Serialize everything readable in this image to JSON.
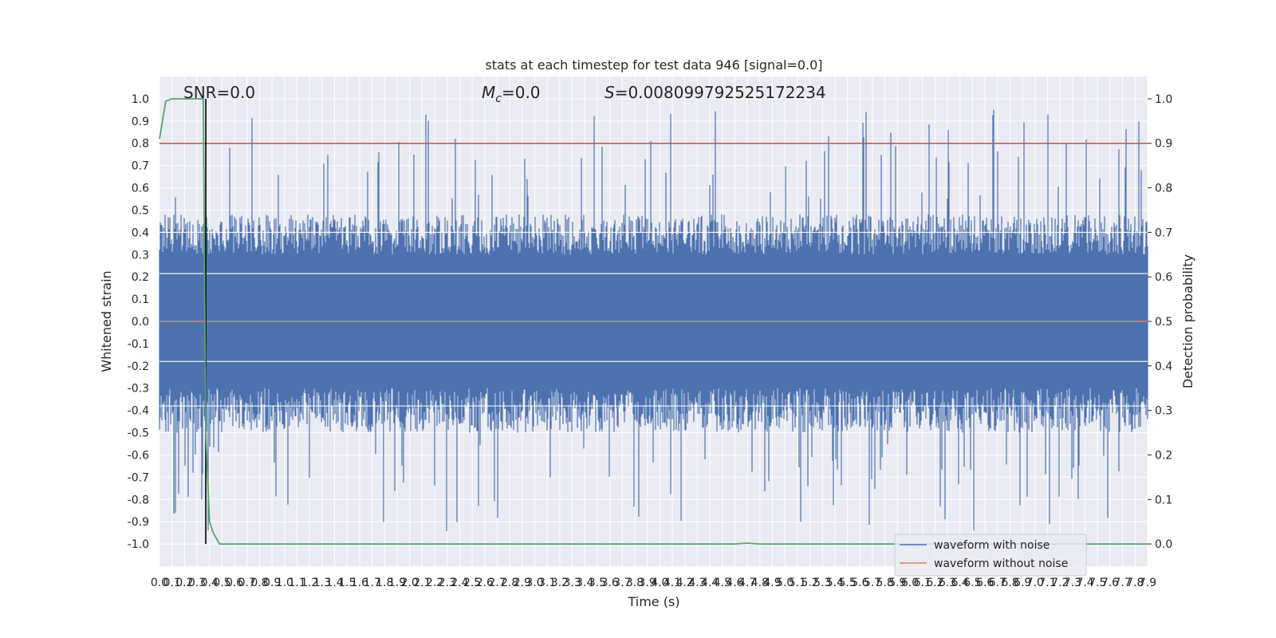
{
  "chart_data": {
    "type": "line",
    "title": "stats at each timestep for test data 946 [signal=0.0]",
    "xlabel": "Time (s)",
    "ylabel_left": "Whitened strain",
    "ylabel_right": "Detection probability",
    "xlim": [
      0.0,
      7.9
    ],
    "ylim_left": [
      -1.1,
      1.1
    ],
    "ylim_right": [
      -0.05,
      1.05
    ],
    "x_ticks": [
      "0.0",
      "0.1",
      "0.2",
      "0.3",
      "0.4",
      "0.5",
      "0.6",
      "0.7",
      "0.8",
      "0.9",
      "1.0",
      "1.1",
      "1.2",
      "1.3",
      "1.4",
      "1.5",
      "1.6",
      "1.7",
      "1.8",
      "1.9",
      "2.0",
      "2.1",
      "2.2",
      "2.3",
      "2.4",
      "2.5",
      "2.6",
      "2.7",
      "2.8",
      "2.9",
      "3.0",
      "3.1",
      "3.2",
      "3.3",
      "3.4",
      "3.5",
      "3.6",
      "3.7",
      "3.8",
      "3.9",
      "4.0",
      "4.1",
      "4.2",
      "4.3",
      "4.4",
      "4.5",
      "4.6",
      "4.7",
      "4.8",
      "4.9",
      "5.0",
      "5.1",
      "5.2",
      "5.3",
      "5.4",
      "5.5",
      "5.6",
      "5.7",
      "5.8",
      "5.9",
      "6.0",
      "6.1",
      "6.2",
      "6.3",
      "6.4",
      "6.5",
      "6.6",
      "6.7",
      "6.8",
      "6.9",
      "7.0",
      "7.1",
      "7.2",
      "7.3",
      "7.4",
      "7.5",
      "7.6",
      "7.7",
      "7.8",
      "7.9"
    ],
    "y_ticks_left": [
      "-1.0",
      "-0.9",
      "-0.8",
      "-0.7",
      "-0.6",
      "-0.5",
      "-0.4",
      "-0.3",
      "-0.2",
      "-0.1",
      "0.0",
      "0.1",
      "0.2",
      "0.3",
      "0.4",
      "0.5",
      "0.6",
      "0.7",
      "0.8",
      "0.9",
      "1.0"
    ],
    "y_ticks_right": [
      "0.0",
      "0.1",
      "0.2",
      "0.3",
      "0.4",
      "0.5",
      "0.6",
      "0.7",
      "0.8",
      "0.9",
      "1.0"
    ],
    "annotations": {
      "snr": "SNR=0.0",
      "mc_symbol": "M",
      "mc_sub": "c",
      "mc_value": "=0.0",
      "s_symbol": "S",
      "s_value": "=0.008099792525172234"
    },
    "series": [
      {
        "name": "waveform with noise",
        "color": "#4c72b0",
        "axis": "left",
        "note": "dense whitened noise, amplitude roughly between -0.98 and 1.0"
      },
      {
        "name": "waveform without noise",
        "color": "#dd8452",
        "axis": "left",
        "values_constant": 0.0
      },
      {
        "name": "",
        "color": "#55a868",
        "axis": "right",
        "x": [
          0.0,
          0.05,
          0.1,
          0.2,
          0.3,
          0.35,
          0.37,
          0.4,
          0.43,
          0.48,
          1.0,
          2.0,
          3.0,
          4.0,
          4.5,
          4.6,
          4.7,
          4.8,
          5.0,
          6.0,
          7.0,
          7.9
        ],
        "values": [
          0.91,
          0.995,
          1.0,
          1.0,
          1.0,
          1.0,
          0.25,
          0.05,
          0.025,
          0.0,
          0.0,
          0.0,
          0.0,
          0.0,
          0.0,
          0.0,
          0.002,
          0.0,
          0.0,
          0.0,
          0.0,
          0.0
        ]
      }
    ],
    "threshold_right": 0.9,
    "threshold_color": "#c44e52",
    "vline_x": 0.37,
    "vline_color": "#000000",
    "legend_placement": "lower-right",
    "grid": true
  }
}
